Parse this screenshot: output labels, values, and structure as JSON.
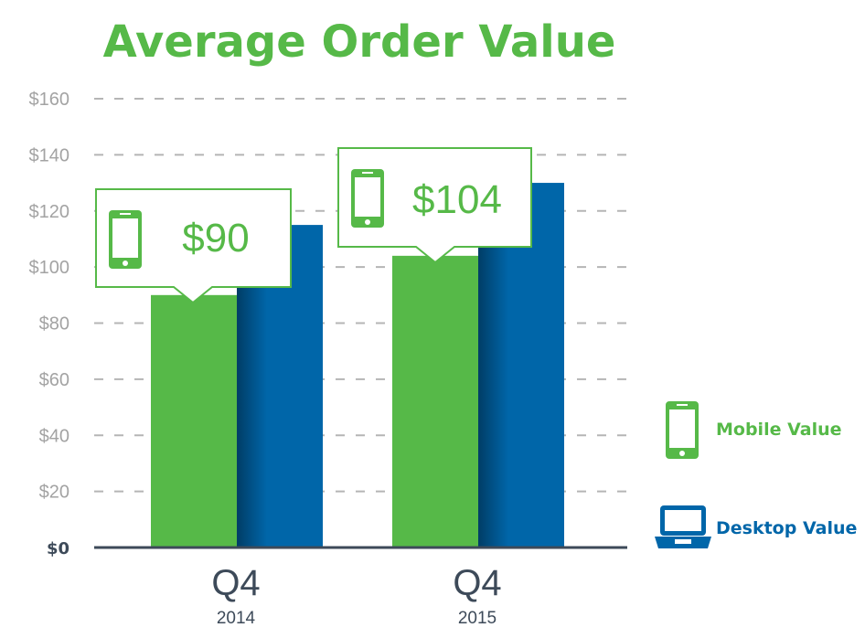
{
  "colors": {
    "mobile": "#56b948",
    "desktop": "#0066a9",
    "title": "#56b948",
    "axis_text": "#a3a3a3",
    "axis_line": "#3d4a59",
    "grid": "#b5b5b5",
    "category_text": "#3d4a59"
  },
  "chart_data": {
    "type": "bar",
    "title": "Average Order Value",
    "categories": [
      "Q4",
      "Q4"
    ],
    "category_sublabels": [
      "2014",
      "2015"
    ],
    "series": [
      {
        "name": "Mobile Value",
        "values": [
          90,
          104
        ]
      },
      {
        "name": "Desktop Value",
        "values": [
          115,
          130
        ]
      }
    ],
    "y_ticks": [
      "$0",
      "$20",
      "$40",
      "$60",
      "$80",
      "$100",
      "$120",
      "$140",
      "$160"
    ],
    "ylim": [
      0,
      160
    ],
    "grid": true,
    "legend_placement": "right",
    "callouts": [
      {
        "label": "$90",
        "series": "Mobile Value",
        "category_index": 0,
        "icon": "phone-icon"
      },
      {
        "label": "$104",
        "series": "Mobile Value",
        "category_index": 1,
        "icon": "phone-icon"
      }
    ],
    "legend": [
      {
        "label": "Mobile Value",
        "icon": "phone-icon"
      },
      {
        "label": "Desktop Value",
        "icon": "laptop-icon"
      }
    ]
  }
}
